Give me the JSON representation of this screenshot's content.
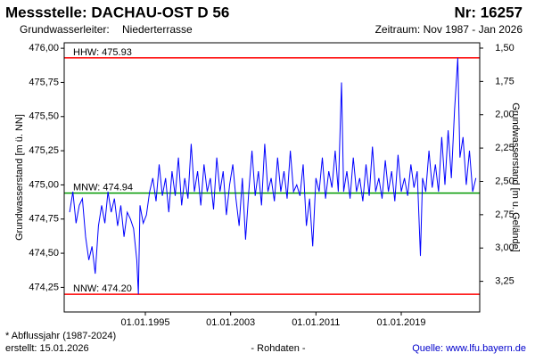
{
  "header": {
    "title": "Messstelle: DACHAU-OST D 56",
    "number": "Nr: 16257",
    "aquifer_label": "Grundwasserleiter:",
    "aquifer": "Niederterrasse",
    "period": "Zeitraum: Nov 1987 - Jan 2026"
  },
  "footer": {
    "note": "* Abflussjahr (1987-2024)",
    "created": "erstellt:  15.01.2026",
    "raw": "- Rohdaten -",
    "source": "Quelle: www.lfu.bayern.de"
  },
  "chart_data": {
    "type": "line",
    "y_label": "Grundwasserstand [m ü. NN]",
    "y2_label": "Grundwasserstand [m u. Gelände]",
    "xlim": [
      1987.39,
      2026.36
    ],
    "xticks": [
      {
        "value": 1995.0,
        "label": "01.01.1995"
      },
      {
        "value": 2003.0,
        "label": "01.01.2003"
      },
      {
        "value": 2011.0,
        "label": "01.01.2011"
      },
      {
        "value": 2019.0,
        "label": "01.01.2019"
      }
    ],
    "ylim": [
      474.07,
      476.04
    ],
    "yticks": [
      {
        "value": 474.25,
        "label": "474,25"
      },
      {
        "value": 474.5,
        "label": "474,50"
      },
      {
        "value": 474.75,
        "label": "474,75"
      },
      {
        "value": 475.0,
        "label": "475,00"
      },
      {
        "value": 475.25,
        "label": "475,25"
      },
      {
        "value": 475.5,
        "label": "475,50"
      },
      {
        "value": 475.75,
        "label": "475,75"
      },
      {
        "value": 476.0,
        "label": "476,00"
      }
    ],
    "y2lim": [
      3.48,
      1.46
    ],
    "y2ticks": [
      {
        "value": 1.5,
        "label": "1,50"
      },
      {
        "value": 1.75,
        "label": "1,75"
      },
      {
        "value": 2.0,
        "label": "2,00"
      },
      {
        "value": 2.25,
        "label": "2,25"
      },
      {
        "value": 2.5,
        "label": "2,50"
      },
      {
        "value": 2.75,
        "label": "2,75"
      },
      {
        "value": 3.0,
        "label": "3,00"
      },
      {
        "value": 3.25,
        "label": "3,25"
      }
    ],
    "grid": false,
    "reference_lines": [
      {
        "label": "HHW: 475.93",
        "value": 475.93,
        "color": "#ff0000"
      },
      {
        "label": "MNW: 474.94",
        "value": 474.94,
        "color": "#009900"
      },
      {
        "label": "NNW: 474.20",
        "value": 474.2,
        "color": "#ff0000"
      }
    ],
    "series": [
      {
        "color": "#0000ff",
        "x": [
          1987.9,
          1988.2,
          1988.5,
          1988.8,
          1989.1,
          1989.4,
          1989.7,
          1990.0,
          1990.3,
          1990.6,
          1990.9,
          1991.2,
          1991.5,
          1991.8,
          1992.1,
          1992.4,
          1992.7,
          1993.0,
          1993.3,
          1993.6,
          1993.9,
          1994.2,
          1994.35,
          1994.5,
          1994.8,
          1995.1,
          1995.4,
          1995.7,
          1996.0,
          1996.3,
          1996.6,
          1996.9,
          1997.2,
          1997.5,
          1997.8,
          1998.1,
          1998.4,
          1998.7,
          1999.0,
          1999.3,
          1999.6,
          1999.9,
          2000.2,
          2000.5,
          2000.8,
          2001.1,
          2001.4,
          2001.7,
          2002.0,
          2002.3,
          2002.6,
          2002.9,
          2003.2,
          2003.5,
          2003.8,
          2004.1,
          2004.4,
          2004.7,
          2005.0,
          2005.3,
          2005.6,
          2005.9,
          2006.2,
          2006.5,
          2006.8,
          2007.1,
          2007.4,
          2007.7,
          2008.0,
          2008.3,
          2008.6,
          2008.9,
          2009.2,
          2009.5,
          2009.8,
          2010.1,
          2010.4,
          2010.7,
          2011.0,
          2011.3,
          2011.6,
          2011.9,
          2012.2,
          2012.5,
          2012.8,
          2013.1,
          2013.4,
          2013.6,
          2013.9,
          2014.2,
          2014.5,
          2014.8,
          2015.1,
          2015.4,
          2015.7,
          2016.0,
          2016.3,
          2016.6,
          2016.9,
          2017.2,
          2017.5,
          2017.8,
          2018.1,
          2018.4,
          2018.7,
          2019.0,
          2019.3,
          2019.6,
          2019.9,
          2020.2,
          2020.5,
          2020.8,
          2021.0,
          2021.3,
          2021.6,
          2021.9,
          2022.2,
          2022.5,
          2022.8,
          2023.1,
          2023.4,
          2023.7,
          2024.0,
          2024.3,
          2024.5,
          2024.8,
          2025.1,
          2025.4,
          2025.7,
          2026.0
        ],
        "values": [
          474.8,
          474.95,
          474.72,
          474.85,
          474.9,
          474.62,
          474.45,
          474.55,
          474.35,
          474.7,
          474.85,
          474.72,
          474.95,
          474.8,
          474.9,
          474.7,
          474.85,
          474.62,
          474.8,
          474.75,
          474.68,
          474.45,
          474.2,
          474.85,
          474.72,
          474.78,
          474.95,
          475.05,
          474.88,
          475.15,
          474.92,
          475.05,
          474.8,
          475.1,
          474.92,
          475.2,
          474.85,
          475.05,
          474.9,
          475.3,
          474.95,
          475.1,
          474.85,
          475.15,
          474.95,
          475.05,
          474.82,
          475.2,
          474.95,
          475.1,
          474.78,
          475.0,
          475.15,
          474.9,
          474.7,
          475.05,
          474.6,
          474.95,
          475.25,
          474.92,
          475.1,
          474.85,
          475.3,
          474.95,
          475.05,
          474.88,
          475.2,
          474.95,
          475.1,
          474.9,
          475.25,
          474.95,
          475.0,
          474.92,
          475.15,
          474.7,
          474.9,
          474.55,
          475.05,
          474.95,
          475.2,
          474.9,
          475.1,
          474.98,
          475.25,
          474.95,
          475.75,
          474.95,
          475.1,
          474.9,
          475.2,
          474.95,
          475.05,
          474.88,
          475.15,
          474.92,
          475.28,
          474.95,
          475.05,
          474.9,
          475.18,
          474.95,
          475.1,
          474.88,
          475.22,
          474.95,
          475.05,
          474.92,
          475.15,
          474.98,
          475.1,
          474.48,
          475.05,
          474.95,
          475.25,
          474.98,
          475.15,
          474.95,
          475.35,
          475.0,
          475.4,
          475.05,
          475.55,
          475.93,
          475.2,
          475.35,
          475.0,
          475.25,
          474.95,
          475.05
        ]
      }
    ]
  }
}
